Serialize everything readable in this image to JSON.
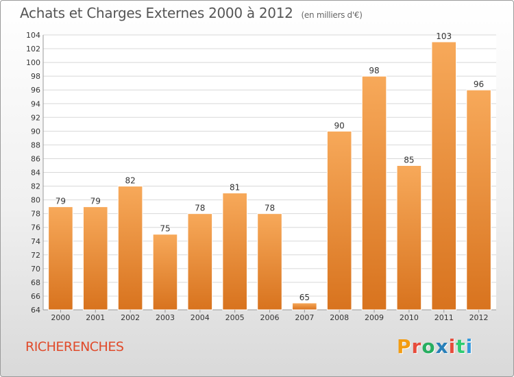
{
  "header": {
    "title": "Achats et Charges Externes 2000 à 2012",
    "subtitle": "(en milliers d'€)"
  },
  "footer": {
    "place": "RICHERENCHES",
    "logo_text": "Proxiti",
    "logo_colors": [
      "#f39c12",
      "#e74c3c",
      "#27ae60",
      "#2980b9",
      "#e74c3c",
      "#2ecc71",
      "#3498db"
    ]
  },
  "colors": {
    "bar_top": "#f7a95a",
    "bar_bottom": "#d8731e",
    "grid": "#d8d8d8",
    "axis_text": "#333333"
  },
  "chart_data": {
    "type": "bar",
    "title": "Achats et Charges Externes 2000 à 2012",
    "subtitle": "(en milliers d'€)",
    "categories": [
      "2000",
      "2001",
      "2002",
      "2003",
      "2004",
      "2005",
      "2006",
      "2007",
      "2008",
      "2009",
      "2010",
      "2011",
      "2012"
    ],
    "values": [
      79,
      79,
      82,
      75,
      78,
      81,
      78,
      65,
      90,
      98,
      85,
      103,
      96
    ],
    "ylim": [
      64,
      104
    ],
    "ytick_step": 2,
    "grid": true,
    "data_labels": true
  }
}
